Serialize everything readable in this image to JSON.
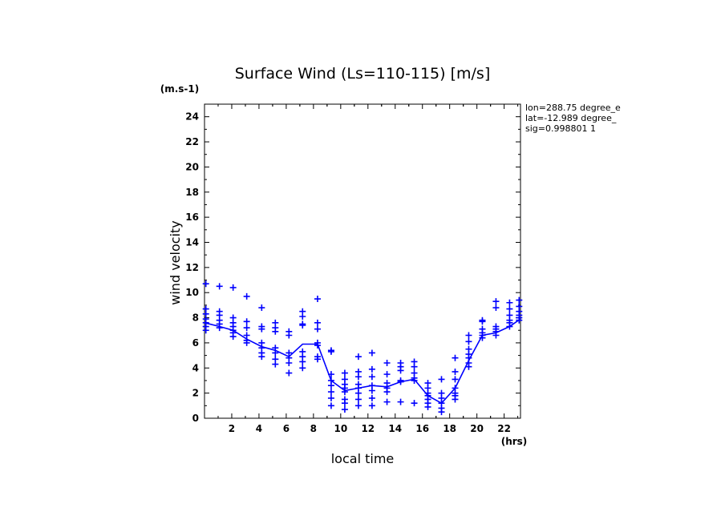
{
  "chart_data": {
    "type": "scatter",
    "title": "Surface Wind  (Ls=110-115) [m/s]",
    "ylabel": "wind velocity",
    "yunit": "(m.s-1)",
    "xlabel": "local time",
    "xunit": "(hrs)",
    "xlim": [
      0,
      23.2
    ],
    "ylim": [
      0,
      25
    ],
    "xticks": [
      2,
      4,
      6,
      8,
      10,
      12,
      14,
      16,
      18,
      20,
      22
    ],
    "yticks": [
      0,
      2,
      4,
      6,
      8,
      10,
      12,
      14,
      16,
      18,
      20,
      22,
      24
    ],
    "grid": false,
    "color": "#0000ff",
    "series": [
      {
        "type": "scatter",
        "marker": "plus",
        "points": [
          [
            0.1,
            10.7
          ],
          [
            0.1,
            8.7
          ],
          [
            0.1,
            8.3
          ],
          [
            0.1,
            7.9
          ],
          [
            0.1,
            7.6
          ],
          [
            0.1,
            7.3
          ],
          [
            0.1,
            7.0
          ],
          [
            1.1,
            10.5
          ],
          [
            1.1,
            8.5
          ],
          [
            1.1,
            8.2
          ],
          [
            1.1,
            7.8
          ],
          [
            1.1,
            7.5
          ],
          [
            1.1,
            7.2
          ],
          [
            2.1,
            10.4
          ],
          [
            2.1,
            8.0
          ],
          [
            2.1,
            7.6
          ],
          [
            2.1,
            7.3
          ],
          [
            2.1,
            7.0
          ],
          [
            2.1,
            6.8
          ],
          [
            2.1,
            6.5
          ],
          [
            3.1,
            9.7
          ],
          [
            3.1,
            7.7
          ],
          [
            3.1,
            7.2
          ],
          [
            3.1,
            6.6
          ],
          [
            3.1,
            6.2
          ],
          [
            3.1,
            6.0
          ],
          [
            4.2,
            8.8
          ],
          [
            4.2,
            7.3
          ],
          [
            4.2,
            7.1
          ],
          [
            4.2,
            6.0
          ],
          [
            4.2,
            5.6
          ],
          [
            4.2,
            5.2
          ],
          [
            4.2,
            4.9
          ],
          [
            5.2,
            7.6
          ],
          [
            5.2,
            7.2
          ],
          [
            5.2,
            6.9
          ],
          [
            5.2,
            5.6
          ],
          [
            5.2,
            5.2
          ],
          [
            5.2,
            4.7
          ],
          [
            5.2,
            4.3
          ],
          [
            6.2,
            6.9
          ],
          [
            6.2,
            6.6
          ],
          [
            6.2,
            5.2
          ],
          [
            6.2,
            4.8
          ],
          [
            6.2,
            4.4
          ],
          [
            6.2,
            3.6
          ],
          [
            7.2,
            8.5
          ],
          [
            7.2,
            8.1
          ],
          [
            7.2,
            7.5
          ],
          [
            7.2,
            7.4
          ],
          [
            7.2,
            5.3
          ],
          [
            7.2,
            4.9
          ],
          [
            7.2,
            4.5
          ],
          [
            7.2,
            4.0
          ],
          [
            8.3,
            9.5
          ],
          [
            8.3,
            7.6
          ],
          [
            8.3,
            7.1
          ],
          [
            8.3,
            6.0
          ],
          [
            8.3,
            5.8
          ],
          [
            8.3,
            4.9
          ],
          [
            8.3,
            4.7
          ],
          [
            9.3,
            5.4
          ],
          [
            9.3,
            5.3
          ],
          [
            9.3,
            3.5
          ],
          [
            9.3,
            3.0
          ],
          [
            9.3,
            2.6
          ],
          [
            9.3,
            2.1
          ],
          [
            9.3,
            1.6
          ],
          [
            9.3,
            1.0
          ],
          [
            10.3,
            3.6
          ],
          [
            10.3,
            3.1
          ],
          [
            10.3,
            2.7
          ],
          [
            10.3,
            2.4
          ],
          [
            10.3,
            2.1
          ],
          [
            10.3,
            1.5
          ],
          [
            10.3,
            1.2
          ],
          [
            10.3,
            0.7
          ],
          [
            11.3,
            3.7
          ],
          [
            11.3,
            3.3
          ],
          [
            11.3,
            2.7
          ],
          [
            11.3,
            2.4
          ],
          [
            11.3,
            2.0
          ],
          [
            11.3,
            1.5
          ],
          [
            11.3,
            1.0
          ],
          [
            12.3,
            5.2
          ],
          [
            12.3,
            3.9
          ],
          [
            12.3,
            3.3
          ],
          [
            12.3,
            2.6
          ],
          [
            12.3,
            2.2
          ],
          [
            12.3,
            1.6
          ],
          [
            12.3,
            1.0
          ],
          [
            11.3,
            4.9
          ],
          [
            13.4,
            4.4
          ],
          [
            13.4,
            3.5
          ],
          [
            13.4,
            2.8
          ],
          [
            13.4,
            2.4
          ],
          [
            13.4,
            2.1
          ],
          [
            13.4,
            1.3
          ],
          [
            14.4,
            4.4
          ],
          [
            14.4,
            4.1
          ],
          [
            14.4,
            3.8
          ],
          [
            14.4,
            3.0
          ],
          [
            14.4,
            2.9
          ],
          [
            14.4,
            1.3
          ],
          [
            15.4,
            4.5
          ],
          [
            15.4,
            4.1
          ],
          [
            15.4,
            3.6
          ],
          [
            15.4,
            3.2
          ],
          [
            15.4,
            3.0
          ],
          [
            15.4,
            1.2
          ],
          [
            16.4,
            2.8
          ],
          [
            16.4,
            2.4
          ],
          [
            16.4,
            2.0
          ],
          [
            16.4,
            1.8
          ],
          [
            16.4,
            1.5
          ],
          [
            16.4,
            1.2
          ],
          [
            16.4,
            0.9
          ],
          [
            17.4,
            3.1
          ],
          [
            17.4,
            2.0
          ],
          [
            17.4,
            1.6
          ],
          [
            17.4,
            1.2
          ],
          [
            17.4,
            0.8
          ],
          [
            17.4,
            0.5
          ],
          [
            18.4,
            4.8
          ],
          [
            18.4,
            3.7
          ],
          [
            18.4,
            3.1
          ],
          [
            18.4,
            2.4
          ],
          [
            18.4,
            2.0
          ],
          [
            18.4,
            1.8
          ],
          [
            18.4,
            1.5
          ],
          [
            19.4,
            6.6
          ],
          [
            19.4,
            6.1
          ],
          [
            19.4,
            5.5
          ],
          [
            19.4,
            5.1
          ],
          [
            19.4,
            4.8
          ],
          [
            19.4,
            4.4
          ],
          [
            19.4,
            4.1
          ],
          [
            20.4,
            7.8
          ],
          [
            20.4,
            7.7
          ],
          [
            20.4,
            7.1
          ],
          [
            20.4,
            6.8
          ],
          [
            20.4,
            6.6
          ],
          [
            20.4,
            6.4
          ],
          [
            21.4,
            9.3
          ],
          [
            21.4,
            8.8
          ],
          [
            21.4,
            7.3
          ],
          [
            21.4,
            7.1
          ],
          [
            21.4,
            6.9
          ],
          [
            21.4,
            6.6
          ],
          [
            22.4,
            9.2
          ],
          [
            22.4,
            8.7
          ],
          [
            22.4,
            8.2
          ],
          [
            22.4,
            7.8
          ],
          [
            22.4,
            7.6
          ],
          [
            22.4,
            7.3
          ],
          [
            23.1,
            9.4
          ],
          [
            23.1,
            8.9
          ],
          [
            23.1,
            8.5
          ],
          [
            23.1,
            8.2
          ],
          [
            23.1,
            8.0
          ],
          [
            23.1,
            7.8
          ]
        ]
      },
      {
        "type": "line",
        "points": [
          [
            0,
            7.6
          ],
          [
            1.1,
            7.3
          ],
          [
            2.1,
            7.0
          ],
          [
            3.1,
            6.3
          ],
          [
            4.2,
            5.7
          ],
          [
            5.2,
            5.4
          ],
          [
            6.2,
            4.9
          ],
          [
            7.2,
            5.9
          ],
          [
            8.3,
            5.9
          ],
          [
            9.3,
            3.0
          ],
          [
            10.3,
            2.2
          ],
          [
            11.3,
            2.4
          ],
          [
            12.3,
            2.6
          ],
          [
            13.4,
            2.5
          ],
          [
            14.4,
            2.9
          ],
          [
            15.4,
            3.1
          ],
          [
            16.4,
            1.8
          ],
          [
            17.4,
            1.2
          ],
          [
            18.4,
            2.4
          ],
          [
            19.4,
            4.6
          ],
          [
            20.4,
            6.6
          ],
          [
            21.4,
            6.8
          ],
          [
            22.4,
            7.3
          ],
          [
            23.2,
            7.9
          ]
        ]
      }
    ]
  },
  "info": {
    "lon": "lon=288.75 degree_e",
    "lat": "lat=-12.989 degree_",
    "sig": "sig=0.998801 1"
  }
}
